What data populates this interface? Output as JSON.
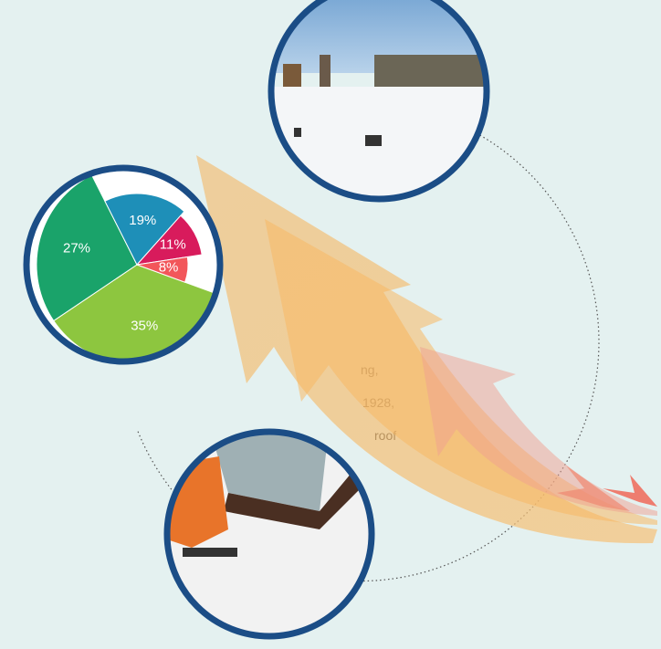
{
  "chart_data": {
    "type": "pie",
    "values": [
      35,
      27,
      19,
      11,
      8
    ],
    "value_labels": [
      "35%",
      "27%",
      "19%",
      "11%",
      "8%"
    ],
    "colors": [
      "#8dc63f",
      "#1aa36a",
      "#1e8fb8",
      "#d81b5c",
      "#f2565a"
    ]
  },
  "text_fragments": [
    "ng,",
    "1928,",
    "roof"
  ]
}
